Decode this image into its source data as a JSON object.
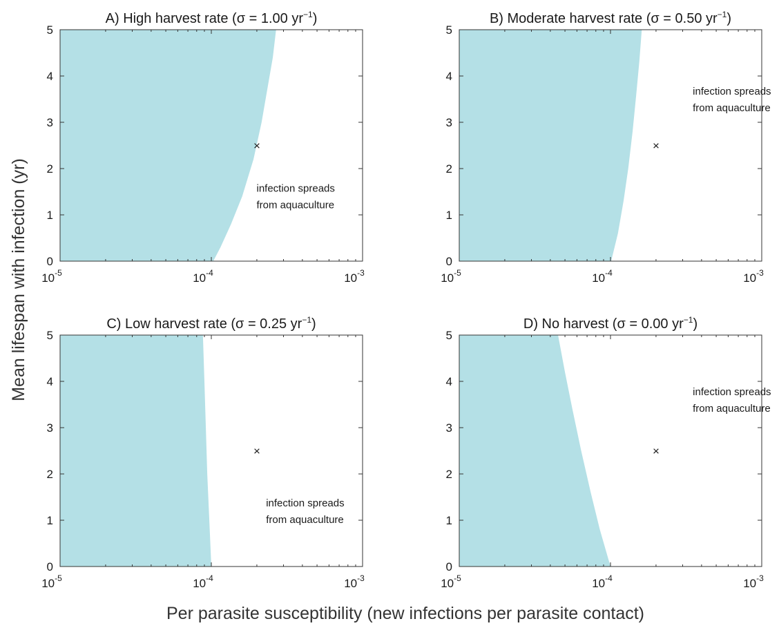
{
  "figure": {
    "ylabel": "Mean lifespan with infection (yr)",
    "xlabel": "Per parasite susceptibility (new infections per parasite contact)"
  },
  "chart_data": [
    {
      "type": "area",
      "title": "A) High harvest rate (σ = 1.00 yr⁻¹)",
      "title_parts": {
        "main": "A) High harvest rate (σ = 1.00 yr",
        "sup": "−1",
        "close": ")"
      },
      "x_scale": "log",
      "xlim": [
        1e-05,
        0.001
      ],
      "ylim": [
        0,
        5
      ],
      "x_ticks": [
        {
          "base": "10",
          "exp": "-5"
        },
        {
          "base": "10",
          "exp": "-4"
        },
        {
          "base": "10",
          "exp": "-3"
        }
      ],
      "y_ticks": [
        "0",
        "1",
        "2",
        "3",
        "4",
        "5"
      ],
      "fill_color": "#b4e0e6",
      "boundary": {
        "x": [
          0.000103,
          0.000115,
          0.000135,
          0.00016,
          0.00019,
          0.000215,
          0.000237,
          0.000255,
          0.000268
        ],
        "y": [
          0,
          0.3,
          0.8,
          1.4,
          2.2,
          3.0,
          3.8,
          4.4,
          5
        ]
      },
      "marker": {
        "x": 0.0002,
        "y": 2.5,
        "symbol": "×"
      },
      "annotation": [
        "infection spreads",
        "from aquaculture"
      ]
    },
    {
      "type": "area",
      "title": "B) Moderate harvest rate (σ = 0.50 yr⁻¹)",
      "title_parts": {
        "main": "B) Moderate harvest rate (σ = 0.50 yr",
        "sup": "−1",
        "close": ")"
      },
      "x_scale": "log",
      "xlim": [
        1e-05,
        0.001
      ],
      "ylim": [
        0,
        5
      ],
      "x_ticks": [
        {
          "base": "10",
          "exp": "-5"
        },
        {
          "base": "10",
          "exp": "-4"
        },
        {
          "base": "10",
          "exp": "-3"
        }
      ],
      "y_ticks": [
        "0",
        "1",
        "2",
        "3",
        "4",
        "5"
      ],
      "fill_color": "#b4e0e6",
      "boundary": {
        "x": [
          0.000101,
          0.000112,
          0.000122,
          0.000131,
          0.00014,
          0.000148,
          0.000155,
          0.000161
        ],
        "y": [
          0,
          0.6,
          1.3,
          2.0,
          2.8,
          3.6,
          4.3,
          5
        ]
      },
      "marker": {
        "x": 0.0002,
        "y": 2.5,
        "symbol": "×"
      },
      "annotation": [
        "infection spreads",
        "from aquaculture"
      ]
    },
    {
      "type": "area",
      "title": "C) Low harvest rate (σ = 0.25 yr⁻¹)",
      "title_parts": {
        "main": "C) Low harvest rate (σ = 0.25 yr",
        "sup": "−1",
        "close": ")"
      },
      "x_scale": "log",
      "xlim": [
        1e-05,
        0.001
      ],
      "ylim": [
        0,
        5
      ],
      "x_ticks": [
        {
          "base": "10",
          "exp": "-5"
        },
        {
          "base": "10",
          "exp": "-4"
        },
        {
          "base": "10",
          "exp": "-3"
        }
      ],
      "y_ticks": [
        "0",
        "1",
        "2",
        "3",
        "4",
        "5"
      ],
      "fill_color": "#b4e0e6",
      "boundary": {
        "x": [
          0.0001,
          9.7e-05,
          9.4e-05,
          9.2e-05,
          9e-05,
          8.8e-05
        ],
        "y": [
          0,
          1,
          2,
          3,
          4,
          5
        ]
      },
      "marker": {
        "x": 0.0002,
        "y": 2.5,
        "symbol": "×"
      },
      "annotation": [
        "infection spreads",
        "from aquaculture"
      ]
    },
    {
      "type": "area",
      "title": "D) No harvest (σ = 0.00 yr⁻¹)",
      "title_parts": {
        "main": "D) No harvest (σ = 0.00 yr",
        "sup": "−1",
        "close": ")"
      },
      "x_scale": "log",
      "xlim": [
        1e-05,
        0.001
      ],
      "ylim": [
        0,
        5
      ],
      "x_ticks": [
        {
          "base": "10",
          "exp": "-5"
        },
        {
          "base": "10",
          "exp": "-4"
        },
        {
          "base": "10",
          "exp": "-3"
        }
      ],
      "y_ticks": [
        "0",
        "1",
        "2",
        "3",
        "4",
        "5"
      ],
      "fill_color": "#b4e0e6",
      "boundary": {
        "x": [
          0.0001,
          8.5e-05,
          7.4e-05,
          6.4e-05,
          5.6e-05,
          5e-05,
          4.5e-05
        ],
        "y": [
          0,
          0.8,
          1.6,
          2.5,
          3.4,
          4.2,
          5
        ]
      },
      "marker": {
        "x": 0.0002,
        "y": 2.5,
        "symbol": "×"
      },
      "annotation": [
        "infection spreads",
        "from aquaculture"
      ]
    }
  ]
}
